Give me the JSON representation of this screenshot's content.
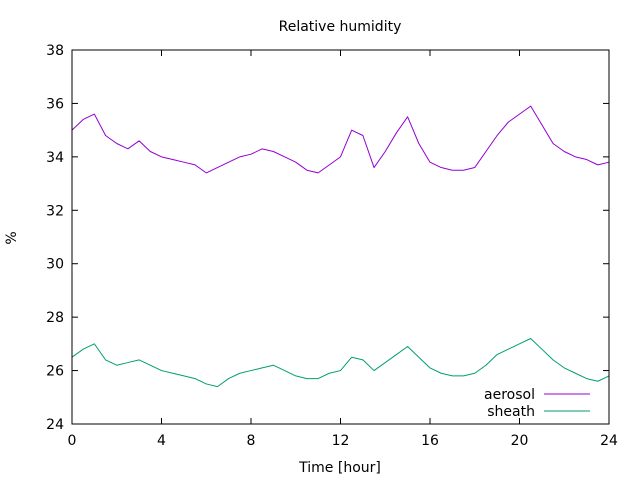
{
  "chart_data": {
    "type": "line",
    "title": "Relative humidity",
    "xlabel": "Time [hour]",
    "ylabel": "%",
    "xlim": [
      0,
      24
    ],
    "ylim": [
      24,
      38
    ],
    "x_ticks": [
      0,
      4,
      8,
      12,
      16,
      20,
      24
    ],
    "y_ticks": [
      24,
      26,
      28,
      30,
      32,
      34,
      36,
      38
    ],
    "grid": false,
    "legend_position": "bottom-right",
    "x": [
      0,
      0.5,
      1,
      1.5,
      2,
      2.5,
      3,
      3.5,
      4,
      4.5,
      5,
      5.5,
      6,
      6.5,
      7,
      7.5,
      8,
      8.5,
      9,
      9.5,
      10,
      10.5,
      11,
      11.5,
      12,
      12.5,
      13,
      13.5,
      14,
      14.5,
      15,
      15.5,
      16,
      16.5,
      17,
      17.5,
      18,
      18.5,
      19,
      19.5,
      20,
      20.5,
      21,
      21.5,
      22,
      22.5,
      23,
      23.5,
      24
    ],
    "series": [
      {
        "name": "aerosol",
        "color": "#9400d3",
        "values": [
          35.0,
          35.4,
          35.6,
          34.8,
          34.5,
          34.3,
          34.6,
          34.2,
          34.0,
          33.9,
          33.8,
          33.7,
          33.4,
          33.6,
          33.8,
          34.0,
          34.1,
          34.3,
          34.2,
          34.0,
          33.8,
          33.5,
          33.4,
          33.7,
          34.0,
          35.0,
          34.8,
          33.6,
          34.2,
          34.9,
          35.5,
          34.5,
          33.8,
          33.6,
          33.5,
          33.5,
          33.6,
          34.2,
          34.8,
          35.3,
          35.6,
          35.9,
          35.2,
          34.5,
          34.2,
          34.0,
          33.9,
          33.7,
          33.8
        ]
      },
      {
        "name": "sheath",
        "color": "#009e73",
        "values": [
          26.5,
          26.8,
          27.0,
          26.4,
          26.2,
          26.3,
          26.4,
          26.2,
          26.0,
          25.9,
          25.8,
          25.7,
          25.5,
          25.4,
          25.7,
          25.9,
          26.0,
          26.1,
          26.2,
          26.0,
          25.8,
          25.7,
          25.7,
          25.9,
          26.0,
          26.5,
          26.4,
          26.0,
          26.3,
          26.6,
          26.9,
          26.5,
          26.1,
          25.9,
          25.8,
          25.8,
          25.9,
          26.2,
          26.6,
          26.8,
          27.0,
          27.2,
          26.8,
          26.4,
          26.1,
          25.9,
          25.7,
          25.6,
          25.8
        ]
      }
    ]
  }
}
